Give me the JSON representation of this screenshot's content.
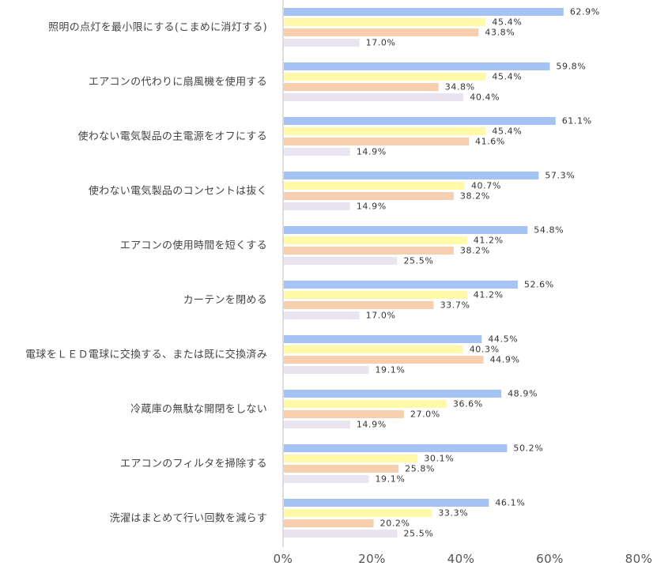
{
  "chart_data": {
    "type": "bar",
    "orientation": "horizontal",
    "categories": [
      "照明の点灯を最小限にする(こまめに消灯する)",
      "エアコンの代わりに扇風機を使用する",
      "使わない電気製品の主電源をオフにする",
      "使わない電気製品のコンセントは抜く",
      "エアコンの使用時間を短くする",
      "カーテンを閉める",
      "電球をＬＥＤ電球に交換する、または既に交換済み",
      "冷蔵庫の無駄な開閉をしない",
      "エアコンのフィルタを掃除する",
      "洗濯はまとめて行い回数を減らす"
    ],
    "series": [
      {
        "color": "#a4c2f4",
        "values": [
          62.9,
          59.8,
          61.1,
          57.3,
          54.8,
          52.6,
          44.5,
          48.9,
          50.2,
          46.1
        ]
      },
      {
        "color": "#fff9a8",
        "values": [
          45.4,
          45.4,
          45.4,
          40.7,
          41.2,
          41.2,
          40.3,
          36.6,
          30.1,
          33.3
        ]
      },
      {
        "color": "#f7cfae",
        "values": [
          43.8,
          34.8,
          41.6,
          38.2,
          38.2,
          33.7,
          44.9,
          27.0,
          25.8,
          20.2
        ]
      },
      {
        "color": "#e9e4ef",
        "values": [
          17.0,
          40.4,
          14.9,
          14.9,
          25.5,
          17.0,
          19.1,
          14.9,
          19.1,
          25.5
        ]
      }
    ],
    "value_suffix": "%",
    "xlim": [
      0,
      80
    ],
    "xticks": [
      0,
      20,
      40,
      60,
      80
    ],
    "xtick_labels": [
      "0%",
      "20%",
      "40%",
      "60%",
      "80%"
    ],
    "grid": false,
    "legend": "none"
  }
}
